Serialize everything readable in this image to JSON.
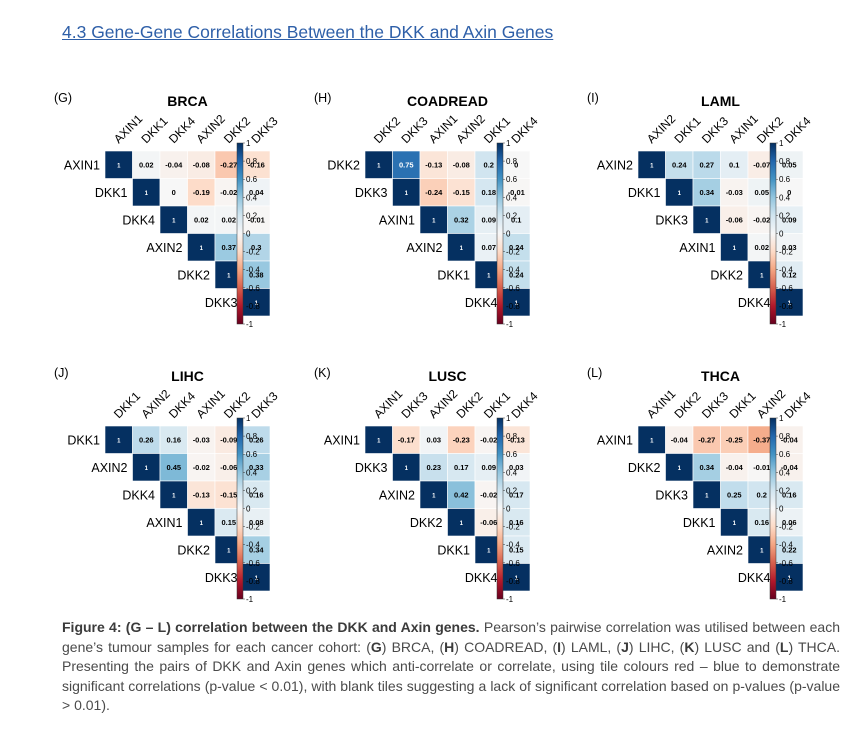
{
  "section_heading": "4.3 Gene-Gene Correlations Between the DKK and Axin Genes",
  "chart_data": [
    {
      "type": "heatmap",
      "panel_label": "(G)",
      "title": "BRCA",
      "genes": [
        "AXIN1",
        "DKK1",
        "DKK4",
        "AXIN2",
        "DKK2",
        "DKK3"
      ],
      "matrix": [
        [
          1,
          0.02,
          -0.04,
          -0.08,
          -0.27,
          -0.16
        ],
        [
          null,
          1,
          0,
          -0.19,
          -0.02,
          0.04
        ],
        [
          null,
          null,
          1,
          0.02,
          0.02,
          -0.01
        ],
        [
          null,
          null,
          null,
          1,
          0.37,
          0.3
        ],
        [
          null,
          null,
          null,
          null,
          1,
          0.38
        ],
        [
          null,
          null,
          null,
          null,
          null,
          1
        ]
      ],
      "colorbar_ticks": [
        "1",
        "0.8",
        "0.6",
        "0.4",
        "0.2",
        "0",
        "-0.2",
        "-0.4",
        "-0.6",
        "-0.8",
        "-1"
      ],
      "color_range": [
        -1,
        1
      ]
    },
    {
      "type": "heatmap",
      "panel_label": "(H)",
      "title": "COADREAD",
      "genes": [
        "DKK2",
        "DKK3",
        "AXIN1",
        "AXIN2",
        "DKK1",
        "DKK4"
      ],
      "matrix": [
        [
          1,
          0.75,
          -0.13,
          -0.08,
          0.2,
          0
        ],
        [
          null,
          1,
          -0.24,
          -0.15,
          0.18,
          -0.01
        ],
        [
          null,
          null,
          1,
          0.32,
          0.09,
          0.1
        ],
        [
          null,
          null,
          null,
          1,
          0.07,
          0.24
        ],
        [
          null,
          null,
          null,
          null,
          1,
          0.24
        ],
        [
          null,
          null,
          null,
          null,
          null,
          1
        ]
      ],
      "colorbar_ticks": [
        "1",
        "0.8",
        "0.6",
        "0.4",
        "0.2",
        "0",
        "-0.2",
        "-0.4",
        "-0.6",
        "-0.8",
        "-1"
      ],
      "color_range": [
        -1,
        1
      ]
    },
    {
      "type": "heatmap",
      "panel_label": "(I)",
      "title": "LAML",
      "genes": [
        "AXIN2",
        "DKK1",
        "DKK3",
        "AXIN1",
        "DKK2",
        "DKK4"
      ],
      "matrix": [
        [
          1,
          0.24,
          0.27,
          0.1,
          -0.07,
          0.05
        ],
        [
          null,
          1,
          0.34,
          -0.03,
          0.05,
          0
        ],
        [
          null,
          null,
          1,
          -0.06,
          -0.02,
          0.09
        ],
        [
          null,
          null,
          null,
          1,
          0.02,
          0.03
        ],
        [
          null,
          null,
          null,
          null,
          1,
          0.12
        ],
        [
          null,
          null,
          null,
          null,
          null,
          1
        ]
      ],
      "colorbar_ticks": [
        "1",
        "0.8",
        "0.6",
        "0.4",
        "0.2",
        "0",
        "-0.2",
        "-0.4",
        "-0.6",
        "-0.8",
        "-1"
      ],
      "color_range": [
        -1,
        1
      ]
    },
    {
      "type": "heatmap",
      "panel_label": "(J)",
      "title": "LIHC",
      "genes": [
        "DKK1",
        "AXIN2",
        "DKK4",
        "AXIN1",
        "DKK2",
        "DKK3"
      ],
      "matrix": [
        [
          1,
          0.26,
          0.16,
          -0.03,
          -0.09,
          0.26
        ],
        [
          null,
          1,
          0.45,
          -0.02,
          -0.06,
          0.33
        ],
        [
          null,
          null,
          1,
          -0.13,
          -0.15,
          0.16
        ],
        [
          null,
          null,
          null,
          1,
          0.15,
          0.08
        ],
        [
          null,
          null,
          null,
          null,
          1,
          0.34
        ],
        [
          null,
          null,
          null,
          null,
          null,
          1
        ]
      ],
      "colorbar_ticks": [
        "1",
        "0.8",
        "0.6",
        "0.4",
        "0.2",
        "0",
        "-0.2",
        "-0.4",
        "-0.6",
        "-0.8",
        "-1"
      ],
      "color_range": [
        -1,
        1
      ]
    },
    {
      "type": "heatmap",
      "panel_label": "(K)",
      "title": "LUSC",
      "genes": [
        "AXIN1",
        "DKK3",
        "AXIN2",
        "DKK2",
        "DKK1",
        "DKK4"
      ],
      "matrix": [
        [
          1,
          -0.17,
          0.03,
          -0.23,
          -0.02,
          -0.13
        ],
        [
          null,
          1,
          0.23,
          0.17,
          0.09,
          0.03
        ],
        [
          null,
          null,
          1,
          0.42,
          -0.02,
          0.17
        ],
        [
          null,
          null,
          null,
          1,
          -0.06,
          0.16
        ],
        [
          null,
          null,
          null,
          null,
          1,
          0.15
        ],
        [
          null,
          null,
          null,
          null,
          null,
          1
        ]
      ],
      "colorbar_ticks": [
        "1",
        "0.8",
        "0.6",
        "0.4",
        "0.2",
        "0",
        "-0.2",
        "-0.4",
        "-0.6",
        "-0.8",
        "-1"
      ],
      "color_range": [
        -1,
        1
      ]
    },
    {
      "type": "heatmap",
      "panel_label": "(L)",
      "title": "THCA",
      "genes": [
        "AXIN1",
        "DKK2",
        "DKK3",
        "DKK1",
        "AXIN2",
        "DKK4"
      ],
      "matrix": [
        [
          1,
          -0.04,
          -0.27,
          -0.25,
          -0.37,
          -0.04
        ],
        [
          null,
          1,
          0.34,
          -0.04,
          -0.01,
          -0.04
        ],
        [
          null,
          null,
          1,
          0.25,
          0.2,
          0.16
        ],
        [
          null,
          null,
          null,
          1,
          0.16,
          0.06
        ],
        [
          null,
          null,
          null,
          null,
          1,
          0.22
        ],
        [
          null,
          null,
          null,
          null,
          null,
          1
        ]
      ],
      "colorbar_ticks": [
        "1",
        "0.8",
        "0.6",
        "0.4",
        "0.2",
        "0",
        "-0.2",
        "-0.4",
        "-0.6",
        "-0.8",
        "-1"
      ],
      "color_range": [
        -1,
        1
      ]
    }
  ],
  "caption": {
    "bold": "Figure 4: (G – L) correlation between the DKK and Axin genes.",
    "text_1": " Pearson’s pairwise correlation was utilised between each gene’s tumour samples for each cancer cohort: (",
    "ref_g": "G",
    "text_2": ") BRCA, (",
    "ref_h": "H",
    "text_3": ") COADREAD, (",
    "ref_i": "I",
    "text_4": ") LAML, (",
    "ref_j": "J",
    "text_5": ") LIHC, (",
    "ref_k": "K",
    "text_6": ") LUSC and (",
    "ref_l": "L",
    "text_7": ") THCA. Presenting the pairs of DKK and Axin genes which anti-correlate or correlate, using tile colours red – blue to demonstrate significant correlations (p-value < 0.01), with blank tiles suggesting a lack of significant correlation based on p-values (p-value > 0.01)."
  },
  "colors": {
    "heading": "#2e5fa8",
    "positive": "#053061",
    "negative": "#67001f",
    "neutral": "#f7f7f7",
    "caption_text": "#4a4a4a"
  }
}
